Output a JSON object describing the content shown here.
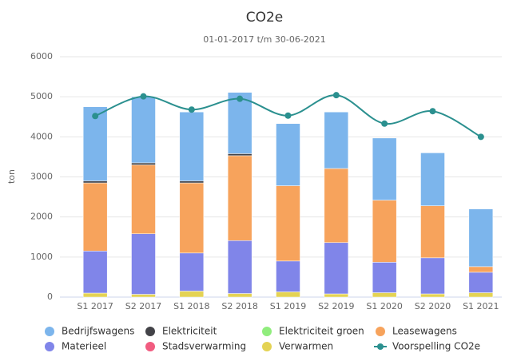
{
  "chart_data": {
    "type": "bar",
    "stacked": true,
    "title": "CO2e",
    "subtitle": "01-01-2017 t/m 30-06-2021",
    "y_label": "ton",
    "categories": [
      "S1 2017",
      "S2 2017",
      "S1 2018",
      "S2 2018",
      "S1 2019",
      "S2 2019",
      "S1 2020",
      "S2 2020",
      "S1 2021"
    ],
    "ylim": [
      0,
      6000
    ],
    "yticks": [
      0,
      1000,
      2000,
      3000,
      4000,
      5000,
      6000
    ],
    "grid": true,
    "legend": "bottom",
    "series": [
      {
        "name": "Bedrijfswagens",
        "color": "#7cb5ec",
        "values": [
          1850,
          1650,
          1720,
          1530,
          1550,
          1410,
          1550,
          1320,
          1440
        ]
      },
      {
        "name": "Elektriciteit",
        "color": "#434348",
        "values": [
          50,
          50,
          50,
          50,
          0,
          0,
          0,
          0,
          0
        ]
      },
      {
        "name": "Elektriciteit groen",
        "color": "#90ed7d",
        "values": [
          0,
          0,
          0,
          0,
          0,
          0,
          0,
          0,
          0
        ]
      },
      {
        "name": "Leasewagens",
        "color": "#f7a35c",
        "values": [
          1700,
          1720,
          1750,
          2120,
          1880,
          1850,
          1550,
          1300,
          140
        ]
      },
      {
        "name": "Materieel",
        "color": "#8085e9",
        "values": [
          1050,
          1510,
          950,
          1320,
          770,
          1280,
          760,
          900,
          510
        ]
      },
      {
        "name": "Stadsverwarming",
        "color": "#f15c80",
        "values": [
          0,
          0,
          0,
          0,
          0,
          0,
          0,
          0,
          0
        ]
      },
      {
        "name": "Verwarmen",
        "color": "#e4d354",
        "values": [
          100,
          70,
          150,
          90,
          130,
          80,
          110,
          80,
          110
        ]
      },
      {
        "name": "Voorspelling CO2e",
        "color": "#2b908f",
        "type": "line",
        "values": [
          4520,
          5010,
          4680,
          4950,
          4530,
          5040,
          4330,
          4640,
          4000
        ]
      }
    ]
  }
}
